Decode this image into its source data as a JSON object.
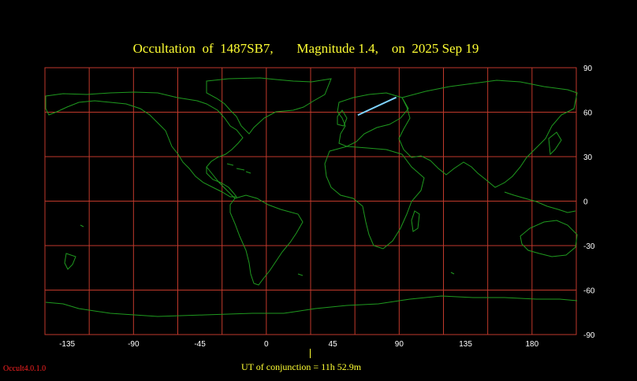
{
  "title": "Occultation  of  1487SB7,       Magnitude 1.4,    on  2025 Sep 19",
  "footer": {
    "ut_conjunction": "UT of conjunction = 11h 52.9m",
    "version": "Occult4.0.1.0"
  },
  "axes": {
    "longitude_labels": [
      "180",
      "-135",
      "-90",
      "-45",
      "0",
      "45",
      "90",
      "135"
    ],
    "latitude_labels": [
      "90",
      "60",
      "30",
      "0",
      "-30",
      "-60",
      "-90"
    ]
  },
  "colors": {
    "background": "#000000",
    "grid": "#c0392b",
    "coastline": "#1f9a1f",
    "path": "#7fd4ff",
    "title": "#ffff33",
    "version": "#ff2222"
  },
  "occultation_path": {
    "description_points": [
      [
        62,
        58
      ],
      [
        88,
        70
      ]
    ]
  }
}
